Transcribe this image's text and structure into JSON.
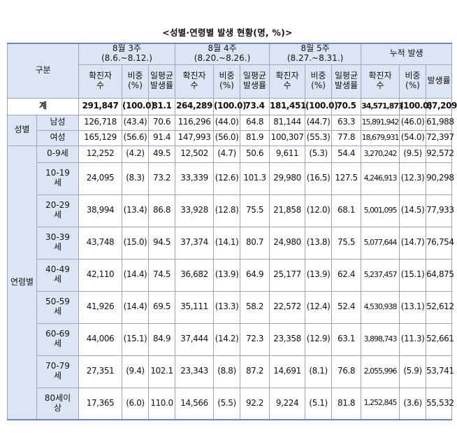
{
  "title": "<성별·연령별 발생 현황(명, %)>",
  "headers": {
    "division": "구분",
    "periods": [
      {
        "line1": "8월 3주",
        "line2": "(8.6.~8.12.)"
      },
      {
        "line1": "8월 4주",
        "line2": "(8.20.~8.26.)"
      },
      {
        "line1": "8월 5주",
        "line2": "(8.27.~8.31.)"
      },
      {
        "line1": "누적 발생",
        "line2": ""
      }
    ],
    "sub": {
      "cases_a": "확진자",
      "cases_b": "수",
      "share_a": "비중",
      "share_b": "(%)",
      "daily_a": "일평균",
      "daily_b": "발생률",
      "rate": "발생률"
    }
  },
  "total": {
    "label": "계",
    "values": [
      "291,847",
      "(100.0)",
      "81.1",
      "264,289",
      "(100.0)",
      "73.4",
      "181,451",
      "(100.0)",
      "70.5",
      "34,571,873",
      "(100.0)",
      "67,209"
    ]
  },
  "sex": {
    "group": "성별",
    "rows": [
      {
        "label": "남성",
        "values": [
          "126,718",
          "(43.4)",
          "70.6",
          "116,296",
          "(44.0)",
          "64.8",
          "81,144",
          "(44.7)",
          "63.3",
          "15,891,942",
          "(46.0)",
          "61,988"
        ]
      },
      {
        "label": "여성",
        "values": [
          "165,129",
          "(56.6)",
          "91.4",
          "147,993",
          "(56.0)",
          "81.9",
          "100,307",
          "(55.3)",
          "77.8",
          "18,679,931",
          "(54.0)",
          "72,397"
        ]
      }
    ]
  },
  "age": {
    "group": "연령별",
    "rows": [
      {
        "label_a": "0-9세",
        "label_b": "",
        "values": [
          "12,252",
          "(4.2)",
          "49.5",
          "12,502",
          "(4.7)",
          "50.6",
          "9,611",
          "(5.3)",
          "54.4",
          "3,270,242",
          "(9.5)",
          "92,572"
        ]
      },
      {
        "label_a": "10-19",
        "label_b": "세",
        "values": [
          "24,095",
          "(8.3)",
          "73.2",
          "33,339",
          "(12.6)",
          "101.3",
          "29,980",
          "(16.5)",
          "127.5",
          "4,246,913",
          "(12.3)",
          "90,298"
        ]
      },
      {
        "label_a": "20-29",
        "label_b": "세",
        "values": [
          "38,994",
          "(13.4)",
          "86.8",
          "33,928",
          "(12.8)",
          "75.5",
          "21,858",
          "(12.0)",
          "68.1",
          "5,001,095",
          "(14.5)",
          "77,933"
        ]
      },
      {
        "label_a": "30-39",
        "label_b": "세",
        "values": [
          "43,748",
          "(15.0)",
          "94.5",
          "37,374",
          "(14.1)",
          "80.7",
          "24,980",
          "(13.8)",
          "75.5",
          "5,077,644",
          "(14.7)",
          "76,754"
        ]
      },
      {
        "label_a": "40-49",
        "label_b": "세",
        "values": [
          "42,110",
          "(14.4)",
          "74.5",
          "36,682",
          "(13.9)",
          "64.9",
          "25,177",
          "(13.9)",
          "62.4",
          "5,237,457",
          "(15.1)",
          "64,875"
        ]
      },
      {
        "label_a": "50-59",
        "label_b": "세",
        "values": [
          "41,926",
          "(14.4)",
          "69.5",
          "35,111",
          "(13.3)",
          "58.2",
          "22,572",
          "(12.4)",
          "52.4",
          "4,530,938",
          "(13.1)",
          "52,612"
        ]
      },
      {
        "label_a": "60-69",
        "label_b": "세",
        "values": [
          "44,006",
          "(15.1)",
          "84.9",
          "37,444",
          "(14.2)",
          "72.3",
          "23,358",
          "(12.9)",
          "63.1",
          "3,898,743",
          "(11.3)",
          "52,661"
        ]
      },
      {
        "label_a": "70-79",
        "label_b": "세",
        "values": [
          "27,351",
          "(9.4)",
          "102.1",
          "23,343",
          "(8.8)",
          "87.2",
          "14,691",
          "(8.1)",
          "76.8",
          "2,055,996",
          "(5.9)",
          "53,741"
        ]
      },
      {
        "label_a": "80세이",
        "label_b": "상",
        "values": [
          "17,365",
          "(6.0)",
          "110.0",
          "14,566",
          "(5.5)",
          "92.2",
          "9,224",
          "(5.1)",
          "81.8",
          "1,252,845",
          "(3.6)",
          "55,532"
        ]
      }
    ]
  }
}
